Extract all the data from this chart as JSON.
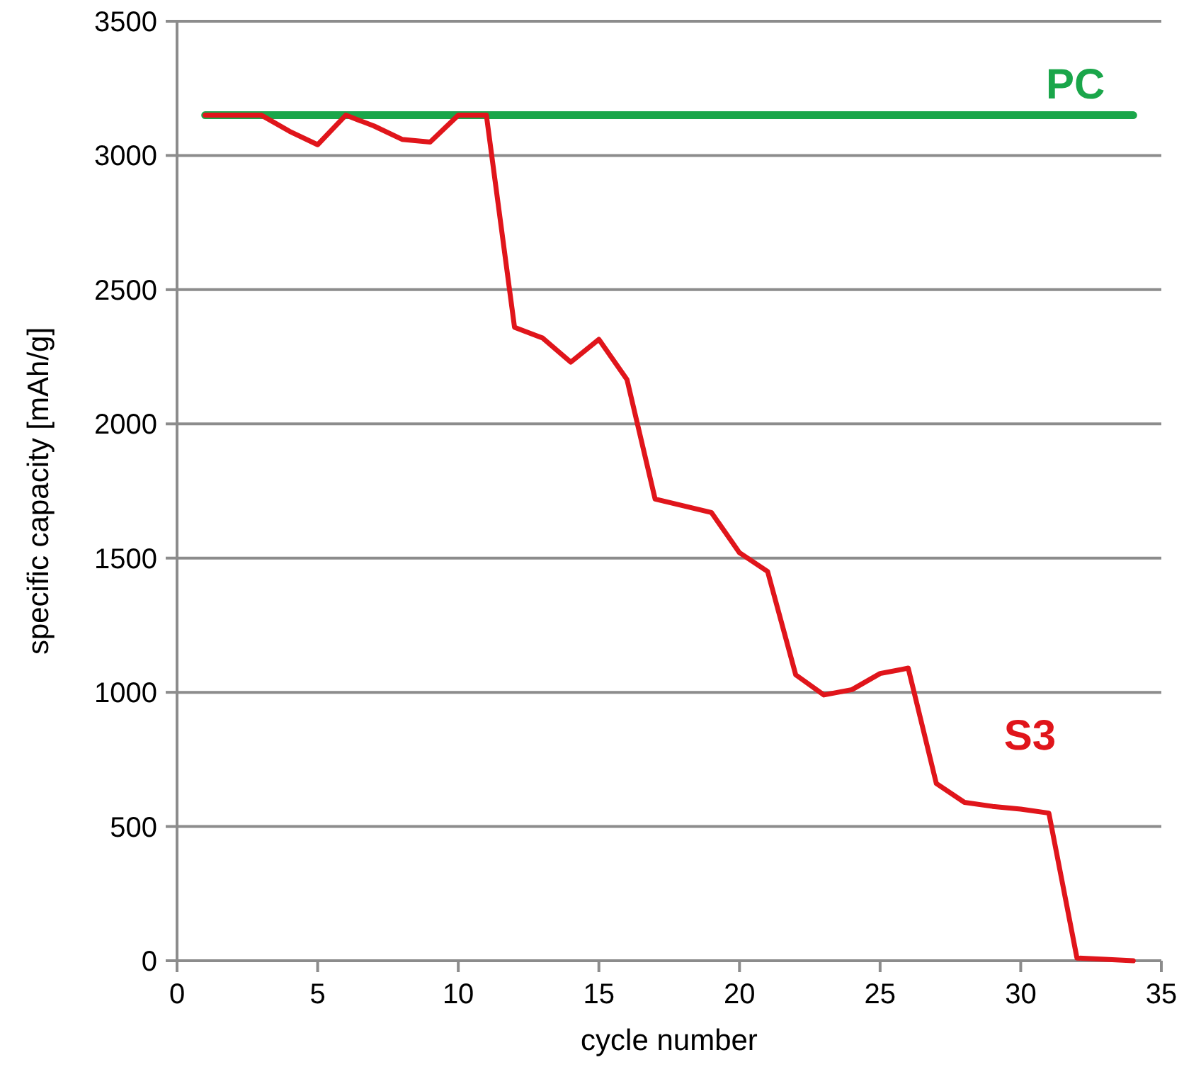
{
  "chart_data": {
    "type": "line",
    "xlabel": "cycle number",
    "ylabel": "specific capacity [mAh/g]",
    "xlim": [
      0,
      35
    ],
    "xticks": [
      0,
      5,
      10,
      15,
      20,
      25,
      30,
      35
    ],
    "ylim": [
      0,
      3500
    ],
    "yticks": [
      0,
      500,
      1000,
      1500,
      2000,
      2500,
      3000,
      3500
    ],
    "grid": "y",
    "legend": false,
    "marker": "none",
    "x": [
      1,
      2,
      3,
      4,
      5,
      6,
      7,
      8,
      9,
      10,
      11,
      12,
      13,
      14,
      15,
      16,
      17,
      18,
      19,
      20,
      21,
      22,
      23,
      24,
      25,
      26,
      27,
      28,
      29,
      30,
      31,
      32,
      33,
      34
    ],
    "series": [
      {
        "name": "PC",
        "color": "#1aa64a",
        "x": [
          1,
          34
        ],
        "values": [
          3150,
          3150
        ]
      },
      {
        "name": "S3",
        "color": "#e0151b",
        "values": [
          3150,
          3150,
          3150,
          3090,
          3040,
          3150,
          3110,
          3060,
          3050,
          3150,
          3150,
          2360,
          2320,
          2230,
          2315,
          2165,
          1720,
          1695,
          1670,
          1520,
          1450,
          1065,
          990,
          1010,
          1070,
          1090,
          660,
          590,
          575,
          565,
          550,
          10,
          5,
          0
        ]
      }
    ]
  }
}
